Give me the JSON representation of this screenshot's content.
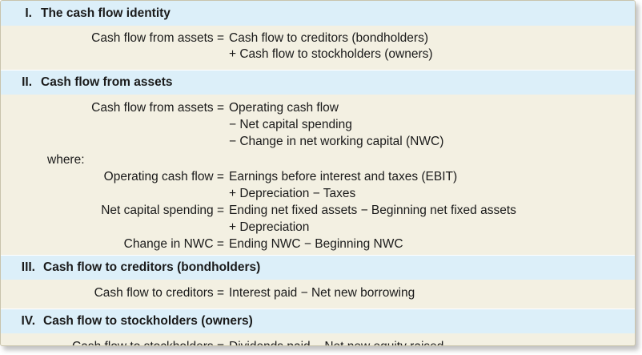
{
  "sections": [
    {
      "numeral": "I.",
      "title": "The cash flow identity",
      "equation": {
        "lhs": "Cash flow from assets =",
        "rhs": "Cash flow to creditors (bondholders)",
        "continuation": [
          "+ Cash flow to stockholders (owners)"
        ]
      }
    },
    {
      "numeral": "II.",
      "title": "Cash flow from assets",
      "equation": {
        "lhs": "Cash flow from assets =",
        "rhs": "Operating cash flow",
        "continuation": [
          "− Net capital spending",
          "− Change in net working capital (NWC)"
        ]
      },
      "where_label": "where:",
      "definitions": [
        {
          "lhs": "Operating cash flow =",
          "rhs": "Earnings before interest and taxes (EBIT)",
          "continuation": [
            "+ Depreciation − Taxes"
          ]
        },
        {
          "lhs": "Net capital spending =",
          "rhs": "Ending net fixed assets − Beginning net fixed assets",
          "continuation": [
            "+ Depreciation"
          ]
        },
        {
          "lhs": "Change in NWC =",
          "rhs": "Ending NWC − Beginning NWC",
          "continuation": []
        }
      ]
    },
    {
      "numeral": "III.",
      "title": "Cash flow to creditors (bondholders)",
      "equation": {
        "lhs": "Cash flow to creditors =",
        "rhs": "Interest paid − Net new borrowing",
        "continuation": []
      }
    },
    {
      "numeral": "IV.",
      "title": "Cash flow to stockholders (owners)",
      "equation": {
        "lhs": "Cash flow to stockholders =",
        "rhs": "Dividends paid − Net new equity raised",
        "continuation": []
      }
    }
  ]
}
